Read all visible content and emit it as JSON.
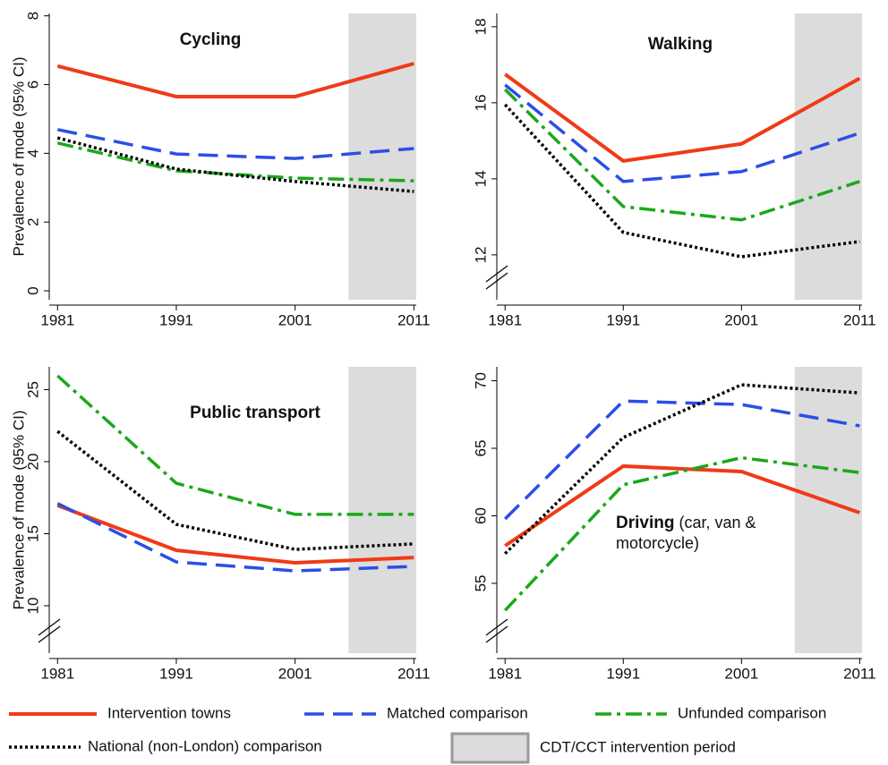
{
  "y_label": "Prevalence of mode (95% CI)",
  "legend": [
    {
      "name": "Intervention towns",
      "color": "#f03a17",
      "style": "solid"
    },
    {
      "name": "Matched comparison",
      "color": "#2b4ee6",
      "style": "dash"
    },
    {
      "name": "Unfunded comparison",
      "color": "#1aa81a",
      "style": "dashdot"
    },
    {
      "name": "National  (non-London) comparison",
      "color": "#000000",
      "style": "dot"
    }
  ],
  "shade": {
    "x": [
      2005.5,
      2011.2
    ],
    "color": "#dcdcdc",
    "label": "CDT/CCT intervention period"
  },
  "chart_data": [
    {
      "type": "line",
      "title": "Cycling",
      "x": [
        1981,
        1991,
        2001,
        2011
      ],
      "series": [
        {
          "values": [
            6.54,
            5.65,
            5.65,
            6.61
          ]
        },
        {
          "values": [
            4.69,
            3.98,
            3.85,
            4.14
          ]
        },
        {
          "values": [
            4.3,
            3.49,
            3.28,
            3.2
          ]
        },
        {
          "values": [
            4.45,
            3.54,
            3.18,
            2.89
          ]
        }
      ],
      "xlim": [
        1980.3,
        2011.2
      ],
      "xticks": [
        1981,
        1991,
        2001,
        2011
      ],
      "ylim": [
        -0.26,
        8.07
      ],
      "yticks": [
        0,
        2,
        4,
        6,
        8
      ],
      "axis_break": false
    },
    {
      "type": "line",
      "title": "Walking",
      "x": [
        1981,
        1991,
        2001,
        2011
      ],
      "series": [
        {
          "values": [
            16.75,
            14.47,
            14.92,
            16.64
          ]
        },
        {
          "values": [
            16.47,
            13.93,
            14.19,
            15.2
          ]
        },
        {
          "values": [
            16.35,
            13.27,
            12.92,
            13.93
          ]
        },
        {
          "values": [
            15.95,
            12.59,
            11.95,
            12.35
          ]
        }
      ],
      "xlim": [
        1980.3,
        2011.2
      ],
      "xticks": [
        1981,
        1991,
        2001,
        2011
      ],
      "ylim": [
        10.82,
        18.35
      ],
      "yticks": [
        12,
        14,
        16,
        18
      ],
      "axis_break": true
    },
    {
      "type": "line",
      "title": "Public transport",
      "x": [
        1981,
        1991,
        2001,
        2011
      ],
      "series": [
        {
          "values": [
            16.96,
            13.85,
            12.98,
            13.35
          ]
        },
        {
          "values": [
            17.1,
            13.04,
            12.42,
            12.73
          ]
        },
        {
          "values": [
            25.96,
            18.5,
            16.34,
            16.34
          ]
        },
        {
          "values": [
            22.1,
            15.65,
            13.91,
            14.29
          ]
        }
      ],
      "xlim": [
        1980.3,
        2011.2
      ],
      "xticks": [
        1981,
        1991,
        2001,
        2011
      ],
      "ylim": [
        6.71,
        26.58
      ],
      "yticks": [
        10,
        15,
        20,
        25
      ],
      "axis_break": true
    },
    {
      "type": "line",
      "title": "Driving",
      "title_note": "(car, van & motorcycle)",
      "x": [
        1981,
        1991,
        2001,
        2011
      ],
      "series": [
        {
          "values": [
            57.78,
            63.68,
            63.28,
            60.23
          ]
        },
        {
          "values": [
            59.77,
            68.5,
            68.24,
            66.66
          ]
        },
        {
          "values": [
            53.0,
            62.3,
            64.3,
            63.2
          ]
        },
        {
          "values": [
            57.2,
            65.8,
            69.7,
            69.1
          ]
        }
      ],
      "xlim": [
        1980.3,
        2011.2
      ],
      "xticks": [
        1981,
        1991,
        2001,
        2011
      ],
      "ylim": [
        49.83,
        71.03
      ],
      "yticks": [
        55,
        60,
        65,
        70
      ],
      "axis_break": true
    }
  ]
}
